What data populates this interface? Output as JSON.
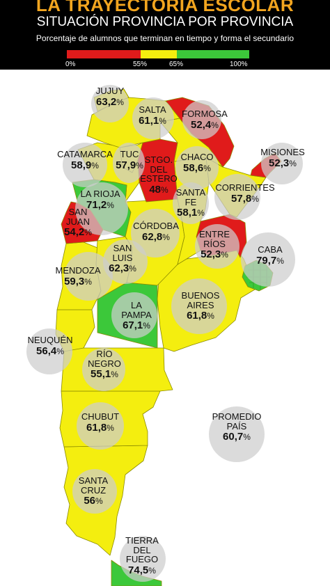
{
  "header": {
    "title": "LA TRAYECTORIA ESCOLAR",
    "subtitle": "SITUACIÓN PROVINCIA POR PROVINCIA",
    "caption": "Porcentaje de alumnos que terminan en tiempo y forma el secundario"
  },
  "legend": {
    "ticks": [
      "0%",
      "55%",
      "65%",
      "100%"
    ],
    "colors": {
      "low": "#e01b1b",
      "mid": "#f4ee0f",
      "high": "#3cc83a"
    }
  },
  "provinces": [
    {
      "name_lines": [
        "JUJUY"
      ],
      "value": "63,2",
      "pct": "%",
      "color": "#f4ee0f"
    },
    {
      "name_lines": [
        "SALTA"
      ],
      "value": "61,1",
      "pct": "%",
      "color": "#f4ee0f"
    },
    {
      "name_lines": [
        "FORMOSA"
      ],
      "value": "52,4",
      "pct": "%",
      "color": "#e01b1b"
    },
    {
      "name_lines": [
        "MISIONES"
      ],
      "value": "52,3",
      "pct": "%",
      "color": "#e01b1b"
    },
    {
      "name_lines": [
        "CATAMARCA"
      ],
      "value": "58,9",
      "pct": "%",
      "color": "#f4ee0f"
    },
    {
      "name_lines": [
        "TUC"
      ],
      "value": "57,9",
      "pct": "%",
      "color": "#f4ee0f"
    },
    {
      "name_lines": [
        "STGO.",
        "DEL",
        "ESTERO"
      ],
      "value": "48",
      "pct": "%",
      "color": "#e01b1b"
    },
    {
      "name_lines": [
        "CHACO"
      ],
      "value": "58,6",
      "pct": "%",
      "color": "#f4ee0f"
    },
    {
      "name_lines": [
        "LA RIOJA"
      ],
      "value": "71,2",
      "pct": "%",
      "color": "#3cc83a"
    },
    {
      "name_lines": [
        "SANTA",
        "FE"
      ],
      "value": "58,1",
      "pct": "%",
      "color": "#f4ee0f"
    },
    {
      "name_lines": [
        "CORRIENTES"
      ],
      "value": "57,8",
      "pct": "%",
      "color": "#f4ee0f"
    },
    {
      "name_lines": [
        "SAN",
        "JUAN"
      ],
      "value": "54,2",
      "pct": "%",
      "color": "#e01b1b"
    },
    {
      "name_lines": [
        "CÓRDOBA"
      ],
      "value": "62,8",
      "pct": "%",
      "color": "#f4ee0f"
    },
    {
      "name_lines": [
        "ENTRE",
        "RÍOS"
      ],
      "value": "52,3",
      "pct": "%",
      "color": "#e01b1b"
    },
    {
      "name_lines": [
        "SAN",
        "LUIS"
      ],
      "value": "62,3",
      "pct": "%",
      "color": "#f4ee0f"
    },
    {
      "name_lines": [
        "CABA"
      ],
      "value": "79,7",
      "pct": "%",
      "color": "#3cc83a"
    },
    {
      "name_lines": [
        "MENDOZA"
      ],
      "value": "59,3",
      "pct": "%",
      "color": "#f4ee0f"
    },
    {
      "name_lines": [
        "BUENOS",
        "AIRES"
      ],
      "value": "61,8",
      "pct": "%",
      "color": "#f4ee0f"
    },
    {
      "name_lines": [
        "LA",
        "PAMPA"
      ],
      "value": "67,1",
      "pct": "%",
      "color": "#3cc83a"
    },
    {
      "name_lines": [
        "NEUQUÉN"
      ],
      "value": "56,4",
      "pct": "%",
      "color": "#f4ee0f"
    },
    {
      "name_lines": [
        "RÍO",
        "NEGRO"
      ],
      "value": "55,1",
      "pct": "%",
      "color": "#f4ee0f"
    },
    {
      "name_lines": [
        "CHUBUT"
      ],
      "value": "61,8",
      "pct": "%",
      "color": "#f4ee0f"
    },
    {
      "name_lines": [
        "PROMEDIO",
        "PAÍS"
      ],
      "value": "60,7",
      "pct": "%",
      "color": ""
    },
    {
      "name_lines": [
        "SANTA",
        "CRUZ"
      ],
      "value": "56",
      "pct": "%",
      "color": "#f4ee0f"
    },
    {
      "name_lines": [
        "TIERRA",
        "DEL",
        "FUEGO"
      ],
      "value": "74,5",
      "pct": "%",
      "color": "#3cc83a"
    }
  ]
}
